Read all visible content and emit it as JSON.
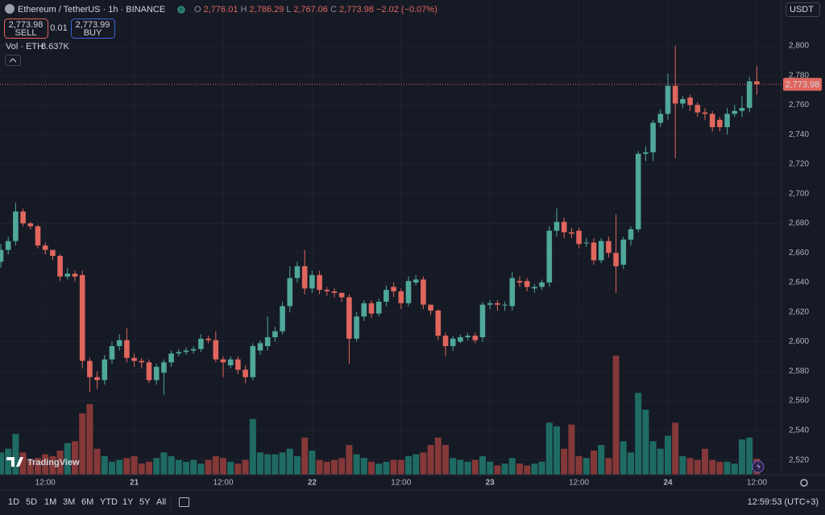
{
  "header": {
    "symbol": "Ethereum / TetherUS · 1h · BINANCE",
    "o": "O",
    "open": "2,776.01",
    "h": "H",
    "high": "2,786.29",
    "l": "L",
    "low": "2,767.06",
    "c": "C",
    "close": "2,773.98",
    "change": "−2.02 (−0.07%)"
  },
  "trade": {
    "sell_price": "2,773.98",
    "sell": "SELL",
    "spread": "0.01",
    "buy_price": "2,773.99",
    "buy": "BUY"
  },
  "volume_legend": "Vol · ETH",
  "currency": "USDT",
  "logo": "TradingView",
  "toolbar": {
    "ranges": [
      "1D",
      "5D",
      "1M",
      "3M",
      "6M",
      "YTD",
      "1Y",
      "5Y",
      "All"
    ],
    "clock": "12:59:53 (UTC+3)"
  },
  "chart_data": {
    "type": "candlestick",
    "categories": [
      null,
      null,
      null,
      null,
      null,
      null,
      "12:00",
      null,
      null,
      null,
      null,
      null,
      null,
      null,
      null,
      null,
      null,
      null,
      "21",
      null,
      null,
      null,
      null,
      null,
      null,
      null,
      null,
      null,
      null,
      null,
      "12:00",
      null,
      null,
      null,
      null,
      null,
      null,
      null,
      null,
      null,
      null,
      null,
      "22",
      null,
      null,
      null,
      null,
      null,
      null,
      null,
      null,
      null,
      null,
      null,
      "12:00",
      null,
      null,
      null,
      null,
      null,
      null,
      null,
      null,
      null,
      null,
      null,
      "23",
      null,
      null,
      null,
      null,
      null,
      null,
      null,
      null,
      null,
      null,
      null,
      "12:00",
      null,
      null,
      null,
      null,
      null,
      null,
      null,
      null,
      null,
      null,
      null,
      "24",
      null,
      null,
      null,
      null,
      null,
      null,
      null,
      null,
      null,
      null,
      null,
      "12:00"
    ],
    "open": [
      2654,
      2662,
      2668,
      2688,
      2680,
      2678,
      2665,
      2662,
      2658,
      2644,
      2646,
      2645,
      2587,
      2576,
      2574,
      2588,
      2597,
      2601,
      2589,
      2587,
      2586,
      2574,
      2579,
      2586,
      2592,
      2593,
      2594,
      2595,
      2602,
      2601,
      2588,
      2584,
      2588,
      2581,
      2576,
      2594,
      2597,
      2603,
      2607,
      2624,
      2643,
      2651,
      2636,
      2645,
      2635,
      2634,
      2633,
      2630,
      2602,
      2617,
      2626,
      2619,
      2627,
      2637,
      2634,
      2626,
      2640,
      2642,
      2625,
      2621,
      2604,
      2597,
      2600,
      2603,
      2604,
      2603,
      2625,
      2626,
      2625,
      2624,
      2641,
      2641,
      2636,
      2637,
      2640,
      2675,
      2681,
      2674,
      2675,
      2667,
      2667,
      2655,
      2668,
      2660,
      2652,
      2669,
      2676,
      2727,
      2728,
      2748,
      2754,
      2773,
      2761,
      2765,
      2760,
      2755,
      2754,
      2750,
      2745,
      2754,
      2756,
      2758,
      2776.01
    ],
    "high": [
      2666,
      2671,
      2694,
      2690,
      2681,
      2679,
      2667,
      2660,
      2659,
      2650,
      2648,
      2648,
      2589,
      2580,
      2591,
      2600,
      2605,
      2609,
      2592,
      2589,
      2588,
      2585,
      2588,
      2594,
      2595,
      2596,
      2597,
      2605,
      2604,
      2607,
      2590,
      2590,
      2590,
      2584,
      2599,
      2601,
      2617,
      2610,
      2627,
      2651,
      2654,
      2662,
      2648,
      2648,
      2637,
      2636,
      2633,
      2632,
      2620,
      2628,
      2628,
      2629,
      2638,
      2640,
      2636,
      2644,
      2645,
      2644,
      2624,
      2622,
      2606,
      2604,
      2605,
      2606,
      2606,
      2627,
      2628,
      2628,
      2627,
      2647,
      2644,
      2643,
      2639,
      2642,
      2678,
      2690,
      2684,
      2677,
      2677,
      2670,
      2670,
      2670,
      2671,
      2686,
      2671,
      2678,
      2729,
      2732,
      2750,
      2757,
      2781,
      2800,
      2766,
      2767,
      2762,
      2758,
      2756,
      2752,
      2758,
      2760,
      2766,
      2779,
      2786.29
    ],
    "low": [
      2650,
      2659,
      2665,
      2678,
      2676,
      2663,
      2659,
      2655,
      2641,
      2642,
      2641,
      2582,
      2566,
      2568,
      2571,
      2585,
      2594,
      2586,
      2583,
      2582,
      2572,
      2571,
      2564,
      2583,
      2590,
      2591,
      2592,
      2593,
      2599,
      2586,
      2576,
      2582,
      2578,
      2572,
      2574,
      2591,
      2594,
      2600,
      2605,
      2620,
      2640,
      2632,
      2633,
      2632,
      2631,
      2630,
      2627,
      2585,
      2600,
      2614,
      2616,
      2617,
      2624,
      2630,
      2622,
      2624,
      2638,
      2622,
      2618,
      2601,
      2590,
      2594,
      2599,
      2601,
      2599,
      2600,
      2622,
      2621,
      2621,
      2621,
      2637,
      2634,
      2633,
      2635,
      2637,
      2671,
      2670,
      2670,
      2663,
      2664,
      2652,
      2653,
      2657,
      2633,
      2649,
      2665,
      2674,
      2722,
      2722,
      2745,
      2750,
      2724,
      2758,
      2756,
      2752,
      2750,
      2742,
      2742,
      2740,
      2752,
      2752,
      2755,
      2767.06
    ],
    "close": [
      2662,
      2668,
      2688,
      2680,
      2678,
      2665,
      2662,
      2658,
      2644,
      2646,
      2644,
      2587,
      2576,
      2574,
      2588,
      2597,
      2601,
      2589,
      2587,
      2586,
      2574,
      2583,
      2586,
      2592,
      2593,
      2594,
      2595,
      2602,
      2601,
      2588,
      2586,
      2588,
      2581,
      2576,
      2597,
      2599,
      2603,
      2607,
      2624,
      2643,
      2651,
      2636,
      2645,
      2635,
      2634,
      2633,
      2630,
      2602,
      2617,
      2626,
      2619,
      2627,
      2635,
      2634,
      2626,
      2641,
      2642,
      2625,
      2621,
      2604,
      2597,
      2602,
      2603,
      2604,
      2601,
      2625,
      2626,
      2625,
      2625,
      2643,
      2640,
      2637,
      2637,
      2640,
      2675,
      2681,
      2674,
      2673,
      2666,
      2667,
      2655,
      2668,
      2660,
      2651,
      2669,
      2676,
      2727,
      2728,
      2748,
      2754,
      2773,
      2761,
      2764,
      2760,
      2755,
      2754,
      2745,
      2745,
      2754,
      2756,
      2758,
      2776,
      2773.98
    ],
    "volume": [
      12,
      14,
      22,
      12,
      8,
      9,
      11,
      10,
      13,
      17,
      18,
      33,
      38,
      14,
      10,
      7,
      8,
      9,
      10,
      6,
      7,
      9,
      12,
      10,
      8,
      7,
      8,
      6,
      8,
      10,
      9,
      7,
      6,
      8,
      30,
      12,
      11,
      11,
      12,
      14,
      10,
      20,
      13,
      8,
      7,
      8,
      9,
      16,
      11,
      9,
      7,
      6,
      7,
      8,
      8,
      10,
      11,
      12,
      16,
      20,
      16,
      9,
      8,
      7,
      8,
      10,
      7,
      5,
      6,
      9,
      6,
      5,
      6,
      7,
      28,
      26,
      14,
      27,
      10,
      9,
      13,
      16,
      9,
      64,
      18,
      12,
      44,
      35,
      18,
      14,
      21,
      28,
      10,
      9,
      8,
      14,
      8,
      7,
      7,
      6,
      19,
      20,
      8.637
    ],
    "last_volume_label": "8.637K",
    "up_color": "#4fa89b",
    "down_color": "#e0665e",
    "volume_up_color": "#1f6b64",
    "volume_down_color": "#843838",
    "ylim": [
      2510,
      2831
    ],
    "yticks": [
      {
        "value": 2520,
        "label": "2,520"
      },
      {
        "value": 2540,
        "label": "2,540"
      },
      {
        "value": 2560,
        "label": "2,560"
      },
      {
        "value": 2580,
        "label": "2,580"
      },
      {
        "value": 2600,
        "label": "2,600"
      },
      {
        "value": 2620,
        "label": "2,620"
      },
      {
        "value": 2640,
        "label": "2,640"
      },
      {
        "value": 2660,
        "label": "2,660"
      },
      {
        "value": 2680,
        "label": "2,680"
      },
      {
        "value": 2700,
        "label": "2,700"
      },
      {
        "value": 2720,
        "label": "2,720"
      },
      {
        "value": 2740,
        "label": "2,740"
      },
      {
        "value": 2760,
        "label": "2,760"
      },
      {
        "value": 2780,
        "label": "2,780"
      },
      {
        "value": 2800,
        "label": "2,800"
      }
    ],
    "grid": true
  }
}
